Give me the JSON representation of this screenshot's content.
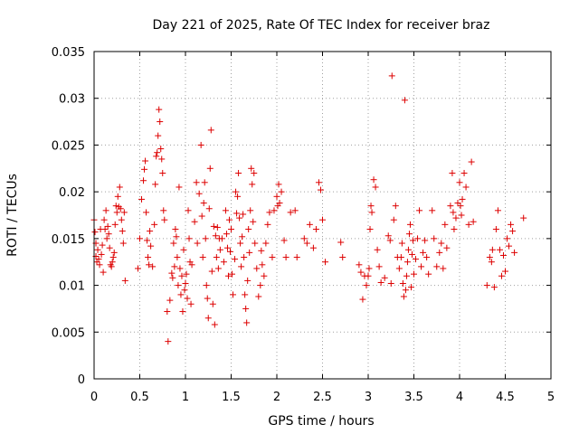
{
  "chart_data": {
    "type": "scatter",
    "title": "Day 221 of 2025, Rate Of TEC Index for receiver braz",
    "xlabel": "GPS time / hours",
    "ylabel": "ROTI / TECUs",
    "xlim": [
      0,
      5
    ],
    "ylim": [
      0,
      0.035
    ],
    "xticks": [
      "0",
      "0.5",
      "1",
      "1.5",
      "2",
      "2.5",
      "3",
      "3.5",
      "4",
      "4.5",
      "5"
    ],
    "yticks": [
      "0",
      "0.005",
      "0.01",
      "0.015",
      "0.02",
      "0.025",
      "0.03",
      "0.035"
    ],
    "grid": true,
    "marker": "+",
    "color": "#dd0000",
    "points": [
      [
        0.0,
        0.017
      ],
      [
        0.01,
        0.0157
      ],
      [
        0.02,
        0.0145
      ],
      [
        0.02,
        0.0131
      ],
      [
        0.03,
        0.0125
      ],
      [
        0.04,
        0.0138
      ],
      [
        0.05,
        0.0128
      ],
      [
        0.06,
        0.0122
      ],
      [
        0.07,
        0.016
      ],
      [
        0.08,
        0.0133
      ],
      [
        0.09,
        0.0143
      ],
      [
        0.1,
        0.0114
      ],
      [
        0.11,
        0.017
      ],
      [
        0.12,
        0.016
      ],
      [
        0.13,
        0.018
      ],
      [
        0.14,
        0.015
      ],
      [
        0.15,
        0.0163
      ],
      [
        0.16,
        0.0155
      ],
      [
        0.17,
        0.014
      ],
      [
        0.18,
        0.0122
      ],
      [
        0.19,
        0.012
      ],
      [
        0.2,
        0.0125
      ],
      [
        0.21,
        0.013
      ],
      [
        0.22,
        0.0135
      ],
      [
        0.23,
        0.0165
      ],
      [
        0.24,
        0.0185
      ],
      [
        0.25,
        0.0178
      ],
      [
        0.26,
        0.0195
      ],
      [
        0.27,
        0.0184
      ],
      [
        0.28,
        0.0205
      ],
      [
        0.29,
        0.0182
      ],
      [
        0.3,
        0.017
      ],
      [
        0.31,
        0.0158
      ],
      [
        0.32,
        0.0145
      ],
      [
        0.33,
        0.0178
      ],
      [
        0.34,
        0.0105
      ],
      [
        0.48,
        0.0118
      ],
      [
        0.5,
        0.015
      ],
      [
        0.52,
        0.0192
      ],
      [
        0.54,
        0.0212
      ],
      [
        0.55,
        0.0224
      ],
      [
        0.56,
        0.0233
      ],
      [
        0.57,
        0.0178
      ],
      [
        0.58,
        0.0148
      ],
      [
        0.59,
        0.013
      ],
      [
        0.6,
        0.0122
      ],
      [
        0.61,
        0.0158
      ],
      [
        0.62,
        0.0142
      ],
      [
        0.64,
        0.012
      ],
      [
        0.66,
        0.0165
      ],
      [
        0.67,
        0.0208
      ],
      [
        0.68,
        0.0238
      ],
      [
        0.69,
        0.0242
      ],
      [
        0.7,
        0.026
      ],
      [
        0.71,
        0.0288
      ],
      [
        0.72,
        0.0275
      ],
      [
        0.73,
        0.0246
      ],
      [
        0.74,
        0.0235
      ],
      [
        0.75,
        0.022
      ],
      [
        0.76,
        0.018
      ],
      [
        0.77,
        0.017
      ],
      [
        0.8,
        0.0072
      ],
      [
        0.81,
        0.004
      ],
      [
        0.83,
        0.0084
      ],
      [
        0.85,
        0.0113
      ],
      [
        0.86,
        0.0108
      ],
      [
        0.87,
        0.0145
      ],
      [
        0.88,
        0.012
      ],
      [
        0.89,
        0.016
      ],
      [
        0.9,
        0.0152
      ],
      [
        0.91,
        0.013
      ],
      [
        0.92,
        0.01
      ],
      [
        0.93,
        0.0205
      ],
      [
        0.94,
        0.0118
      ],
      [
        0.95,
        0.009
      ],
      [
        0.96,
        0.011
      ],
      [
        0.97,
        0.0072
      ],
      [
        0.98,
        0.0138
      ],
      [
        0.99,
        0.0095
      ],
      [
        1.0,
        0.0102
      ],
      [
        1.01,
        0.0112
      ],
      [
        1.02,
        0.0086
      ],
      [
        1.03,
        0.018
      ],
      [
        1.04,
        0.015
      ],
      [
        1.05,
        0.0125
      ],
      [
        1.06,
        0.008
      ],
      [
        1.07,
        0.0122
      ],
      [
        1.1,
        0.0168
      ],
      [
        1.12,
        0.021
      ],
      [
        1.13,
        0.0145
      ],
      [
        1.15,
        0.0198
      ],
      [
        1.17,
        0.025
      ],
      [
        1.18,
        0.0174
      ],
      [
        1.19,
        0.013
      ],
      [
        1.2,
        0.0188
      ],
      [
        1.21,
        0.021
      ],
      [
        1.22,
        0.015
      ],
      [
        1.23,
        0.01
      ],
      [
        1.24,
        0.0086
      ],
      [
        1.25,
        0.0065
      ],
      [
        1.26,
        0.0182
      ],
      [
        1.27,
        0.0225
      ],
      [
        1.28,
        0.0266
      ],
      [
        1.29,
        0.0115
      ],
      [
        1.3,
        0.008
      ],
      [
        1.31,
        0.0163
      ],
      [
        1.32,
        0.0058
      ],
      [
        1.33,
        0.0153
      ],
      [
        1.34,
        0.013
      ],
      [
        1.35,
        0.0162
      ],
      [
        1.36,
        0.0118
      ],
      [
        1.37,
        0.015
      ],
      [
        1.38,
        0.0138
      ],
      [
        1.4,
        0.015
      ],
      [
        1.42,
        0.0125
      ],
      [
        1.44,
        0.018
      ],
      [
        1.45,
        0.0155
      ],
      [
        1.46,
        0.014
      ],
      [
        1.47,
        0.011
      ],
      [
        1.48,
        0.017
      ],
      [
        1.49,
        0.0136
      ],
      [
        1.5,
        0.016
      ],
      [
        1.51,
        0.0112
      ],
      [
        1.52,
        0.009
      ],
      [
        1.54,
        0.0128
      ],
      [
        1.55,
        0.02
      ],
      [
        1.56,
        0.0177
      ],
      [
        1.57,
        0.0195
      ],
      [
        1.58,
        0.022
      ],
      [
        1.59,
        0.0172
      ],
      [
        1.6,
        0.0145
      ],
      [
        1.61,
        0.012
      ],
      [
        1.62,
        0.0152
      ],
      [
        1.63,
        0.0176
      ],
      [
        1.64,
        0.013
      ],
      [
        1.65,
        0.009
      ],
      [
        1.66,
        0.0075
      ],
      [
        1.67,
        0.006
      ],
      [
        1.68,
        0.0105
      ],
      [
        1.69,
        0.016
      ],
      [
        1.7,
        0.0135
      ],
      [
        1.71,
        0.018
      ],
      [
        1.72,
        0.0225
      ],
      [
        1.73,
        0.0208
      ],
      [
        1.74,
        0.0168
      ],
      [
        1.75,
        0.022
      ],
      [
        1.76,
        0.0145
      ],
      [
        1.78,
        0.0118
      ],
      [
        1.8,
        0.0088
      ],
      [
        1.82,
        0.01
      ],
      [
        1.83,
        0.0137
      ],
      [
        1.84,
        0.0122
      ],
      [
        1.86,
        0.011
      ],
      [
        1.88,
        0.0145
      ],
      [
        1.9,
        0.0165
      ],
      [
        1.92,
        0.0178
      ],
      [
        1.95,
        0.013
      ],
      [
        1.97,
        0.018
      ],
      [
        2.0,
        0.0195
      ],
      [
        2.01,
        0.0185
      ],
      [
        2.02,
        0.0208
      ],
      [
        2.03,
        0.0188
      ],
      [
        2.05,
        0.02
      ],
      [
        2.08,
        0.0148
      ],
      [
        2.1,
        0.013
      ],
      [
        2.15,
        0.0178
      ],
      [
        2.2,
        0.018
      ],
      [
        2.22,
        0.013
      ],
      [
        2.3,
        0.015
      ],
      [
        2.33,
        0.0145
      ],
      [
        2.36,
        0.0165
      ],
      [
        2.4,
        0.014
      ],
      [
        2.43,
        0.016
      ],
      [
        2.46,
        0.021
      ],
      [
        2.48,
        0.0202
      ],
      [
        2.5,
        0.017
      ],
      [
        2.53,
        0.0125
      ],
      [
        2.7,
        0.0146
      ],
      [
        2.72,
        0.013
      ],
      [
        2.9,
        0.0122
      ],
      [
        2.92,
        0.0114
      ],
      [
        2.94,
        0.0085
      ],
      [
        2.96,
        0.011
      ],
      [
        2.98,
        0.01
      ],
      [
        3.0,
        0.011
      ],
      [
        3.01,
        0.0118
      ],
      [
        3.02,
        0.016
      ],
      [
        3.03,
        0.0185
      ],
      [
        3.04,
        0.0178
      ],
      [
        3.06,
        0.0213
      ],
      [
        3.08,
        0.0205
      ],
      [
        3.1,
        0.0138
      ],
      [
        3.12,
        0.012
      ],
      [
        3.14,
        0.0103
      ],
      [
        3.18,
        0.0108
      ],
      [
        3.22,
        0.0153
      ],
      [
        3.24,
        0.0148
      ],
      [
        3.25,
        0.0102
      ],
      [
        3.26,
        0.0324
      ],
      [
        3.28,
        0.017
      ],
      [
        3.3,
        0.0185
      ],
      [
        3.32,
        0.013
      ],
      [
        3.34,
        0.0118
      ],
      [
        3.36,
        0.013
      ],
      [
        3.37,
        0.0145
      ],
      [
        3.38,
        0.0102
      ],
      [
        3.39,
        0.0088
      ],
      [
        3.4,
        0.0298
      ],
      [
        3.41,
        0.0095
      ],
      [
        3.42,
        0.011
      ],
      [
        3.43,
        0.0125
      ],
      [
        3.44,
        0.0138
      ],
      [
        3.45,
        0.0155
      ],
      [
        3.46,
        0.0165
      ],
      [
        3.47,
        0.0098
      ],
      [
        3.48,
        0.0133
      ],
      [
        3.49,
        0.0148
      ],
      [
        3.5,
        0.0112
      ],
      [
        3.52,
        0.0128
      ],
      [
        3.54,
        0.015
      ],
      [
        3.56,
        0.018
      ],
      [
        3.58,
        0.012
      ],
      [
        3.6,
        0.0135
      ],
      [
        3.62,
        0.0148
      ],
      [
        3.64,
        0.013
      ],
      [
        3.66,
        0.0112
      ],
      [
        3.7,
        0.018
      ],
      [
        3.72,
        0.015
      ],
      [
        3.75,
        0.012
      ],
      [
        3.78,
        0.0135
      ],
      [
        3.8,
        0.0145
      ],
      [
        3.82,
        0.0118
      ],
      [
        3.84,
        0.0165
      ],
      [
        3.86,
        0.014
      ],
      [
        3.9,
        0.0185
      ],
      [
        3.92,
        0.022
      ],
      [
        3.93,
        0.0178
      ],
      [
        3.94,
        0.016
      ],
      [
        3.96,
        0.0172
      ],
      [
        3.98,
        0.0188
      ],
      [
        4.0,
        0.021
      ],
      [
        4.01,
        0.0185
      ],
      [
        4.02,
        0.0175
      ],
      [
        4.03,
        0.0192
      ],
      [
        4.05,
        0.022
      ],
      [
        4.07,
        0.0205
      ],
      [
        4.1,
        0.0165
      ],
      [
        4.13,
        0.0232
      ],
      [
        4.15,
        0.0168
      ],
      [
        4.3,
        0.01
      ],
      [
        4.33,
        0.013
      ],
      [
        4.35,
        0.0125
      ],
      [
        4.36,
        0.0138
      ],
      [
        4.38,
        0.0098
      ],
      [
        4.4,
        0.016
      ],
      [
        4.42,
        0.018
      ],
      [
        4.44,
        0.0138
      ],
      [
        4.46,
        0.011
      ],
      [
        4.48,
        0.0132
      ],
      [
        4.5,
        0.0115
      ],
      [
        4.52,
        0.015
      ],
      [
        4.54,
        0.0142
      ],
      [
        4.56,
        0.0165
      ],
      [
        4.58,
        0.0158
      ],
      [
        4.6,
        0.0135
      ],
      [
        4.7,
        0.0172
      ]
    ]
  }
}
